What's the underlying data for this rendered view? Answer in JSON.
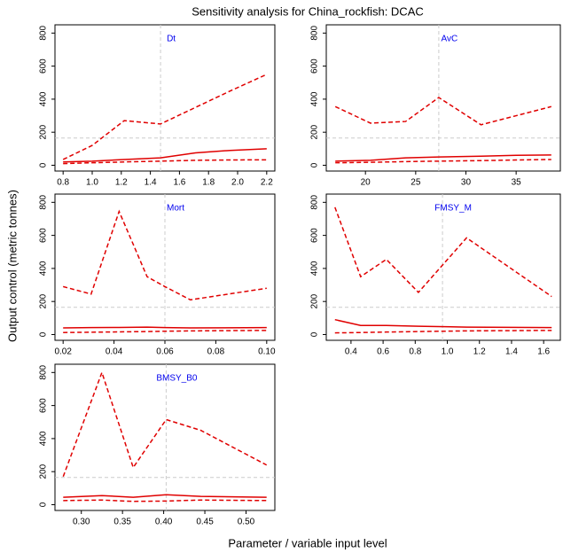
{
  "title": "Sensitivity analysis for China_rockfish: DCAC",
  "xlabel": "Parameter / variable input level",
  "ylabel": "Output control (metric tonnes)",
  "chart_data": [
    {
      "type": "line",
      "title": "Dt",
      "x": [
        0.8,
        1.0,
        1.22,
        1.47,
        1.71,
        1.95,
        2.2
      ],
      "series": [
        {
          "color": "#e00000",
          "dash": false,
          "values": [
            20,
            25,
            35,
            45,
            75,
            90,
            100
          ]
        },
        {
          "color": "#e00000",
          "dash": true,
          "values": [
            10,
            15,
            20,
            25,
            30,
            32,
            33
          ]
        },
        {
          "color": "#e00000",
          "dash": true,
          "values": [
            35,
            120,
            270,
            250,
            350,
            450,
            550
          ]
        }
      ],
      "vline": 1.47,
      "hline": 165,
      "xlim": [
        0.744,
        2.256
      ],
      "ylim": [
        -35,
        850
      ],
      "xticks": [
        0.8,
        {
          "value": 1.0,
          "label": "1.0"
        },
        1.2,
        1.4,
        1.6,
        1.8,
        {
          "value": 2.0,
          "label": "2.0"
        },
        2.2
      ],
      "yticks": [
        0,
        200,
        400,
        600,
        800
      ]
    },
    {
      "type": "line",
      "title": "AvC",
      "x": [
        17,
        20.5,
        24,
        27.3,
        31.5,
        35,
        38.5
      ],
      "series": [
        {
          "color": "#e00000",
          "dash": false,
          "values": [
            25,
            30,
            45,
            50,
            55,
            60,
            62
          ]
        },
        {
          "color": "#e00000",
          "dash": true,
          "values": [
            15,
            18,
            22,
            25,
            28,
            32,
            35
          ]
        },
        {
          "color": "#e00000",
          "dash": true,
          "values": [
            355,
            255,
            265,
            410,
            245,
            300,
            355
          ]
        }
      ],
      "vline": 27.3,
      "hline": 165,
      "xlim": [
        16.1,
        39.4
      ],
      "ylim": [
        -35,
        850
      ],
      "xticks": [
        20,
        25,
        30,
        35
      ],
      "yticks": [
        0,
        200,
        400,
        600,
        800
      ]
    },
    {
      "type": "line",
      "title": "Mort",
      "x": [
        0.02,
        0.031,
        0.042,
        0.053,
        0.06,
        0.07,
        0.1
      ],
      "series": [
        {
          "color": "#e00000",
          "dash": false,
          "values": [
            40,
            42,
            43,
            45,
            42,
            40,
            42
          ]
        },
        {
          "color": "#e00000",
          "dash": true,
          "values": [
            12,
            14,
            16,
            18,
            20,
            22,
            25
          ]
        },
        {
          "color": "#e00000",
          "dash": true,
          "values": [
            290,
            245,
            745,
            350,
            290,
            210,
            280
          ]
        }
      ],
      "vline": 0.06,
      "hline": 165,
      "xlim": [
        0.0168,
        0.1032
      ],
      "ylim": [
        -35,
        850
      ],
      "xticks": [
        0.02,
        0.04,
        0.06,
        0.08,
        {
          "value": 0.1,
          "label": "0.10"
        }
      ],
      "yticks": [
        0,
        200,
        400,
        600,
        800
      ]
    },
    {
      "type": "line",
      "title": "FMSY_M",
      "x": [
        0.3,
        0.46,
        0.62,
        0.82,
        1.12,
        1.65
      ],
      "series": [
        {
          "color": "#e00000",
          "dash": false,
          "values": [
            90,
            55,
            55,
            50,
            45,
            42
          ]
        },
        {
          "color": "#e00000",
          "dash": true,
          "values": [
            10,
            12,
            15,
            18,
            22,
            25
          ]
        },
        {
          "color": "#e00000",
          "dash": true,
          "values": [
            770,
            350,
            455,
            255,
            585,
            230
          ]
        }
      ],
      "vline": 0.97,
      "hline": 165,
      "xlim": [
        0.246,
        1.704
      ],
      "ylim": [
        -35,
        850
      ],
      "xticks": [
        0.4,
        0.6,
        0.8,
        {
          "value": 1.0,
          "label": "1.0"
        },
        1.2,
        1.4,
        1.6
      ],
      "yticks": [
        0,
        200,
        400,
        600,
        800
      ]
    },
    {
      "type": "line",
      "title": "BMSY_B0",
      "x": [
        0.278,
        0.325,
        0.363,
        0.403,
        0.445,
        0.525
      ],
      "series": [
        {
          "color": "#e00000",
          "dash": false,
          "values": [
            45,
            55,
            45,
            60,
            50,
            45
          ]
        },
        {
          "color": "#e00000",
          "dash": true,
          "values": [
            25,
            28,
            20,
            22,
            28,
            25
          ]
        },
        {
          "color": "#e00000",
          "dash": true,
          "values": [
            170,
            800,
            225,
            515,
            450,
            240
          ]
        }
      ],
      "vline": 0.403,
      "hline": 165,
      "xlim": [
        0.268,
        0.535
      ],
      "ylim": [
        -35,
        850
      ],
      "xticks": [
        {
          "value": 0.3,
          "label": "0.30"
        },
        0.35,
        {
          "value": 0.4,
          "label": "0.40"
        },
        0.45,
        {
          "value": 0.5,
          "label": "0.50"
        }
      ],
      "yticks": [
        0,
        200,
        400,
        600,
        800
      ]
    }
  ]
}
